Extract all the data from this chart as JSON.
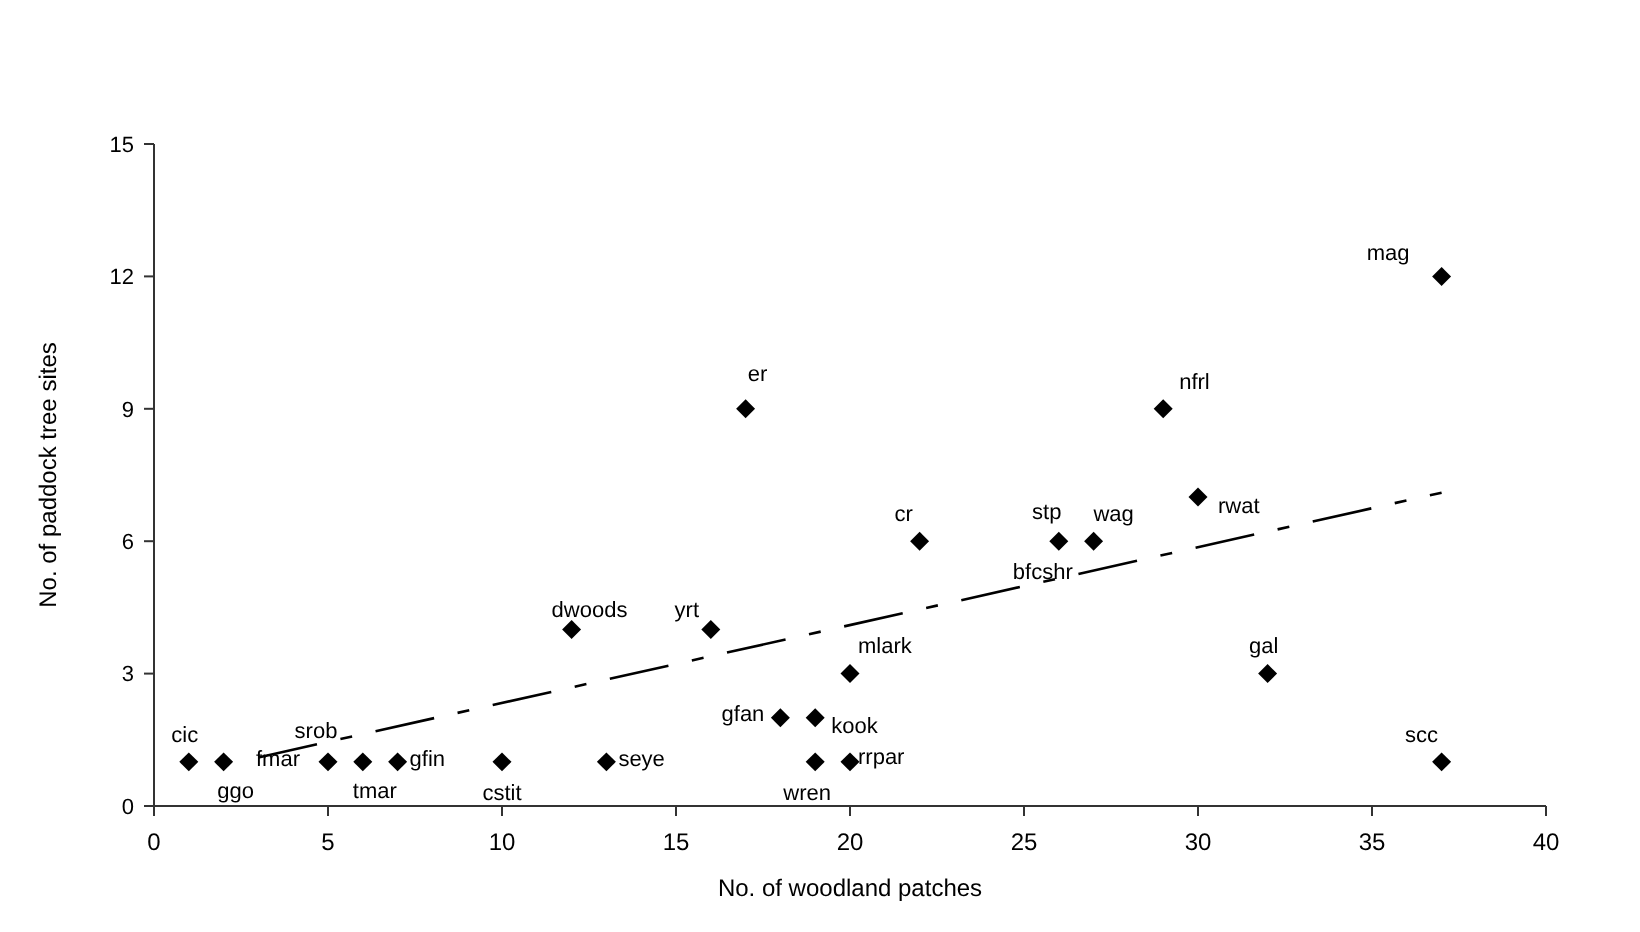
{
  "chart_data": {
    "type": "scatter",
    "xlabel": "No. of woodland patches",
    "ylabel": "No. of paddock tree sites",
    "xlim": [
      0,
      40
    ],
    "ylim": [
      0,
      15
    ],
    "xticks": [
      0,
      5,
      10,
      15,
      20,
      25,
      30,
      35,
      40
    ],
    "yticks": [
      0,
      3,
      6,
      9,
      12,
      15
    ],
    "grid": false,
    "series": [
      {
        "color": "#000000",
        "marker": "diamond",
        "x": [
          1,
          2,
          5,
          6,
          7,
          10,
          12,
          13,
          16,
          17,
          18,
          19,
          19,
          20,
          20,
          22,
          26,
          27,
          29,
          30,
          32,
          37,
          37
        ],
        "values": [
          1,
          1,
          1,
          1,
          1,
          1,
          4,
          1,
          4,
          9,
          2,
          2,
          1,
          1,
          3,
          6,
          6,
          6,
          9,
          7,
          3,
          1,
          12
        ]
      },
      {
        "type": "line",
        "color": "#000000",
        "line_style": "dashed",
        "marker": "none",
        "x": [
          3,
          37
        ],
        "values": [
          1.1,
          7.1
        ]
      }
    ],
    "annotations": [
      {
        "text": "cic",
        "x": 1,
        "y": 1
      },
      {
        "text": "ggo",
        "x": 2,
        "y": 1
      },
      {
        "text": "fmar",
        "x": 5,
        "y": 1
      },
      {
        "text": "srob",
        "x": 5,
        "y": 1
      },
      {
        "text": "tmar",
        "x": 6,
        "y": 1
      },
      {
        "text": "gfin",
        "x": 7,
        "y": 1
      },
      {
        "text": "cstit",
        "x": 10,
        "y": 1
      },
      {
        "text": "dwoods",
        "x": 12,
        "y": 4
      },
      {
        "text": "seye",
        "x": 13,
        "y": 1
      },
      {
        "text": "yrt",
        "x": 16,
        "y": 4
      },
      {
        "text": "er",
        "x": 17,
        "y": 9
      },
      {
        "text": "gfan",
        "x": 18,
        "y": 2
      },
      {
        "text": "kook",
        "x": 19,
        "y": 2
      },
      {
        "text": "wren",
        "x": 19,
        "y": 1
      },
      {
        "text": "rrpar",
        "x": 20,
        "y": 1
      },
      {
        "text": "mlark",
        "x": 20,
        "y": 3
      },
      {
        "text": "cr",
        "x": 22,
        "y": 6
      },
      {
        "text": "stp",
        "x": 26,
        "y": 6
      },
      {
        "text": "bfcshr",
        "x": 26,
        "y": 6
      },
      {
        "text": "wag",
        "x": 27,
        "y": 6
      },
      {
        "text": "nfrl",
        "x": 29,
        "y": 9
      },
      {
        "text": "rwat",
        "x": 30,
        "y": 7
      },
      {
        "text": "gal",
        "x": 32,
        "y": 3
      },
      {
        "text": "scc",
        "x": 37,
        "y": 1
      },
      {
        "text": "mag",
        "x": 37,
        "y": 12
      }
    ]
  }
}
